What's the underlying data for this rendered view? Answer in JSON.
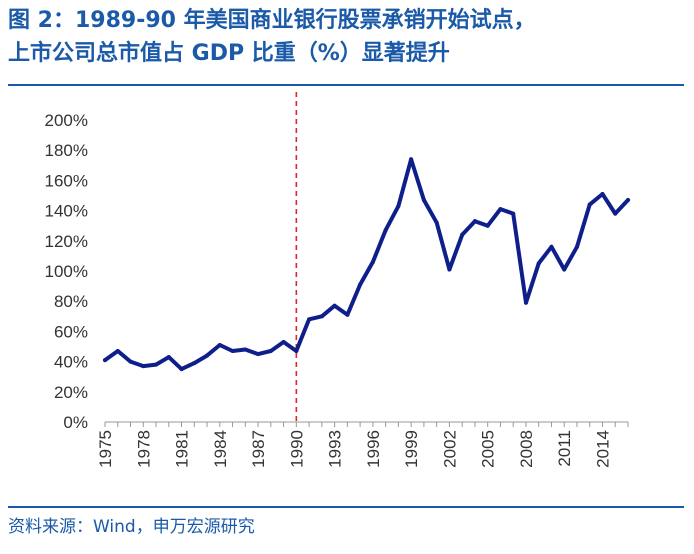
{
  "header": {
    "title_line1": "图 2：1989-90 年美国商业银行股票承销开始试点，",
    "title_line2": "上市公司总市值占 GDP 比重（%）显著提升"
  },
  "footer": {
    "source": "资料来源：Wind，申万宏源研究"
  },
  "colors": {
    "title": "#1a5aa8",
    "line": "#0e1f8c",
    "marker": "#d62828"
  },
  "chart_data": {
    "type": "line",
    "title": "",
    "xlabel": "",
    "ylabel": "",
    "ylim": [
      0,
      200
    ],
    "y_ticks": [
      "0%",
      "20%",
      "40%",
      "60%",
      "80%",
      "100%",
      "120%",
      "140%",
      "160%",
      "180%",
      "200%"
    ],
    "x_tick_labels": [
      "1975",
      "1978",
      "1981",
      "1984",
      "1987",
      "1990",
      "1993",
      "1996",
      "1999",
      "2002",
      "2005",
      "2008",
      "2011",
      "2014"
    ],
    "x_range": [
      1975,
      2016
    ],
    "grid": false,
    "vertical_marker": {
      "x": 1990,
      "style": "dashed"
    },
    "series": [
      {
        "x": [
          1975,
          1976,
          1977,
          1978,
          1979,
          1980,
          1981,
          1982,
          1983,
          1984,
          1985,
          1986,
          1987,
          1988,
          1989,
          1990,
          1991,
          1992,
          1993,
          1994,
          1995,
          1996,
          1997,
          1998,
          1999,
          2000,
          2001,
          2002,
          2003,
          2004,
          2005,
          2006,
          2007,
          2008,
          2009,
          2010,
          2011,
          2012,
          2013,
          2014,
          2015,
          2016
        ],
        "values": [
          41,
          47,
          40,
          37,
          38,
          43,
          35,
          39,
          44,
          51,
          47,
          48,
          45,
          47,
          53,
          47,
          68,
          70,
          77,
          71,
          91,
          106,
          127,
          143,
          174,
          147,
          132,
          101,
          124,
          133,
          130,
          141,
          138,
          79,
          105,
          116,
          101,
          116,
          144,
          151,
          138,
          147
        ]
      }
    ]
  }
}
